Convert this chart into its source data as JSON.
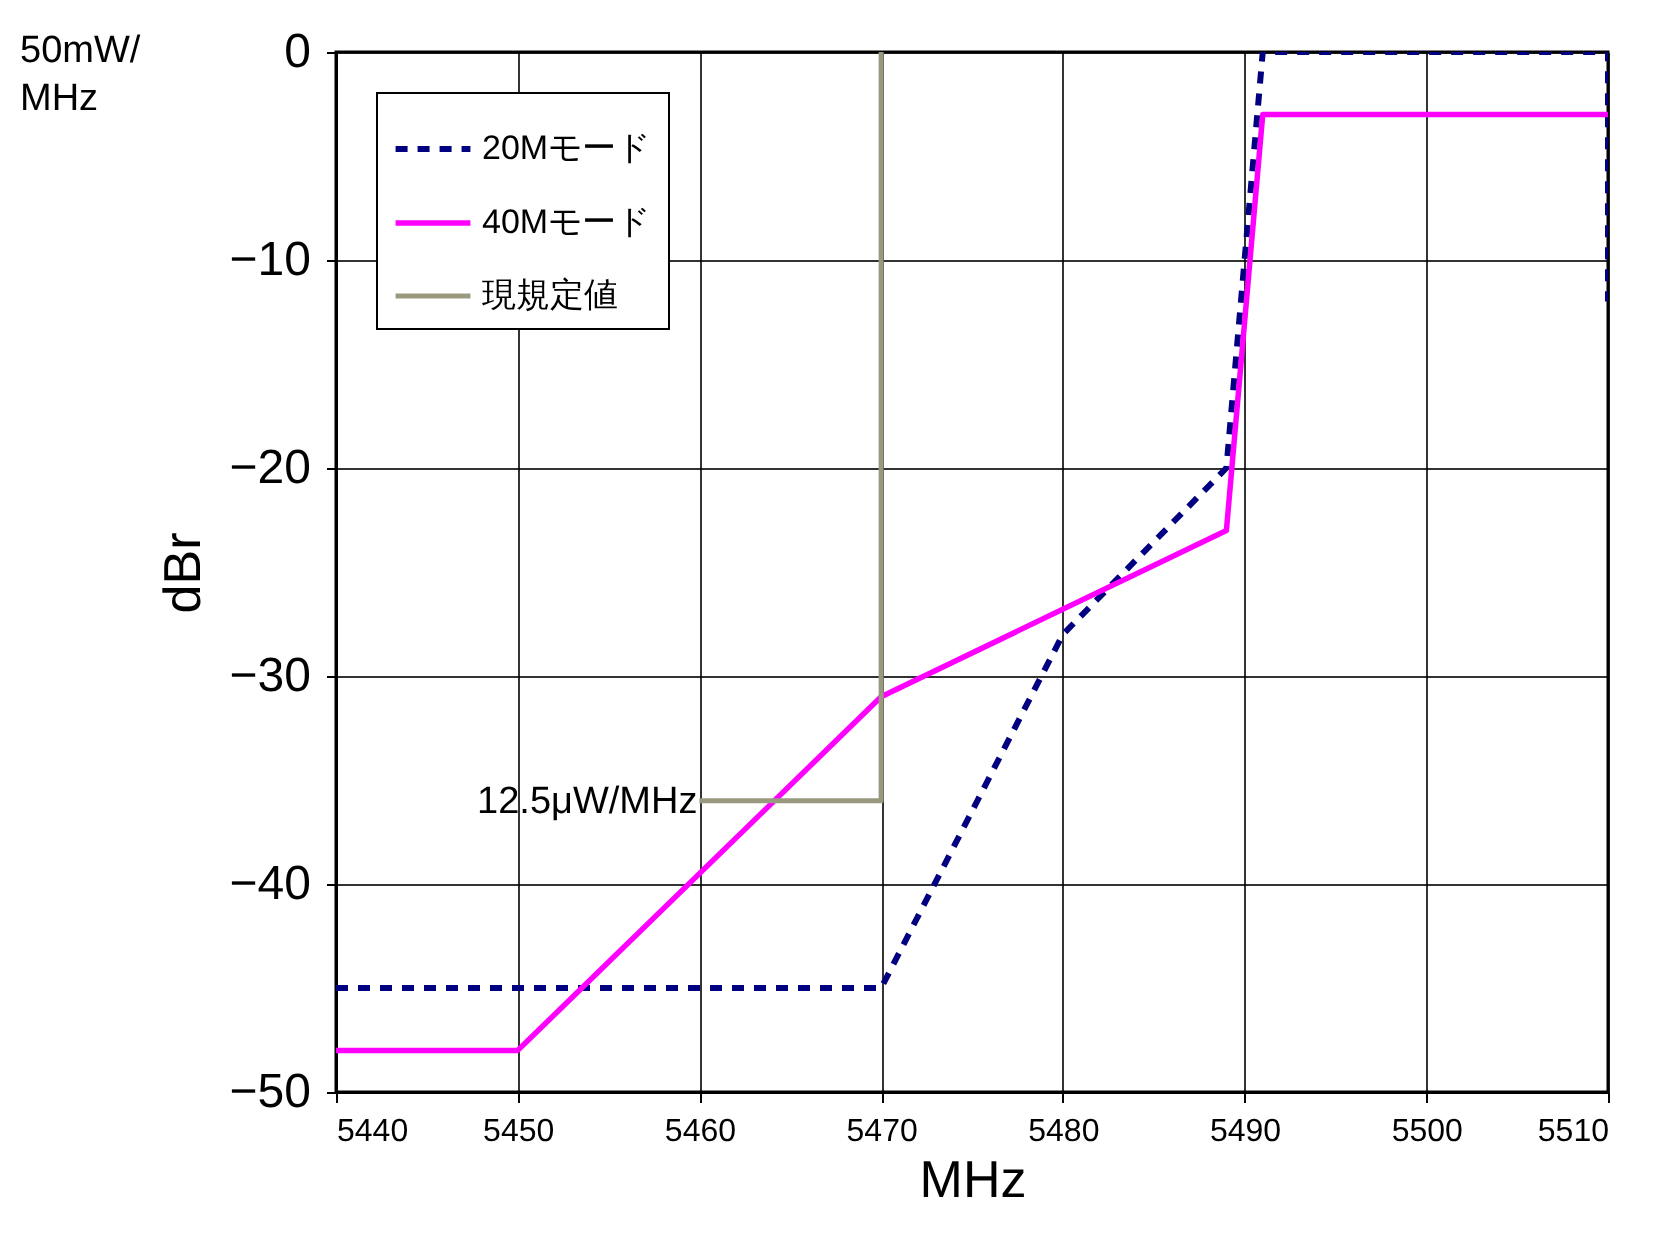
{
  "chart_data": {
    "type": "line",
    "xlabel": "MHz",
    "ylabel": "dBr",
    "xlim": [
      5440,
      5510
    ],
    "xticks": [
      5440,
      5450,
      5460,
      5470,
      5480,
      5490,
      5500,
      5510
    ],
    "ylim": [
      -50,
      0
    ],
    "yticks": [
      -50,
      -40,
      -30,
      -20,
      -10,
      0
    ],
    "grid": true,
    "legend": "top left",
    "series": [
      {
        "name": "20Mモード",
        "color": "#000080",
        "line_style": "dashed",
        "x": [
          5440,
          5470,
          5480,
          5489,
          5491,
          5510,
          5510
        ],
        "values": [
          -45,
          -45,
          -28,
          -20,
          0,
          0,
          -12
        ]
      },
      {
        "name": "40Mモード",
        "color": "#ff00ff",
        "line_style": "solid",
        "x": [
          5440,
          5450,
          5470,
          5489,
          5491,
          5510
        ],
        "values": [
          -48,
          -48,
          -31,
          -23,
          -3,
          -3
        ]
      },
      {
        "name": "現規定値",
        "color": "#999980",
        "line_style": "solid",
        "x": [
          5460,
          5470,
          5470
        ],
        "values": [
          -36,
          -36,
          0
        ]
      }
    ],
    "annotations": [
      "50mW/",
      "MHz",
      {
        "text": "12.5μW/MHz",
        "x": 5460,
        "y": -36
      }
    ]
  }
}
